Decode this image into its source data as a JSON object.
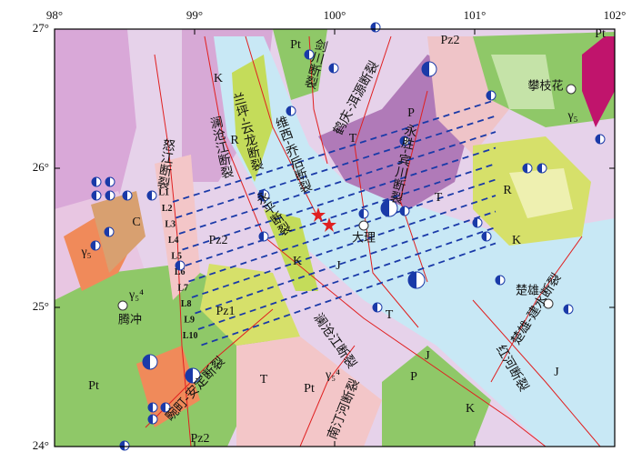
{
  "map": {
    "lon_ticks": [
      {
        "value": 98,
        "label": "98°"
      },
      {
        "value": 99,
        "label": "99°"
      },
      {
        "value": 100,
        "label": "100°"
      },
      {
        "value": 101,
        "label": "101°"
      },
      {
        "value": 102,
        "label": "102°"
      }
    ],
    "lat_ticks": [
      {
        "value": 27,
        "label": "27°"
      },
      {
        "value": 26,
        "label": "26°"
      },
      {
        "value": 25,
        "label": "25°"
      },
      {
        "value": 24,
        "label": "24°"
      }
    ],
    "faults": [
      "怒江断裂",
      "澜沧江断裂",
      "兰坪-云龙断裂",
      "维西-乔后断裂",
      "剑川断裂",
      "鹤庆-洱源断裂",
      "永胜-宾川断裂",
      "永平断裂",
      "澜沧江断裂",
      "南汀河断裂",
      "畹町-安定断裂",
      "红河断裂",
      "楚雄-建水断裂"
    ],
    "places": [
      "攀枝花",
      "大理",
      "楚雄",
      "腾冲"
    ],
    "units": [
      "Pt",
      "Pz2",
      "Pt",
      "K",
      "R",
      "T",
      "P",
      "T",
      "R",
      "K",
      "C",
      "Pz2",
      "γ₅",
      "K",
      "J",
      "T",
      "Pz1",
      "J",
      "Pt",
      "T",
      "Pt",
      "γ₅⁴",
      "P",
      "K",
      "J",
      "Pz2",
      "γ₅",
      "γ₅⁴"
    ],
    "profiles": [
      "L1",
      "L2",
      "L3",
      "L4",
      "L5",
      "L6",
      "L7",
      "L8",
      "L9",
      "L10"
    ]
  }
}
